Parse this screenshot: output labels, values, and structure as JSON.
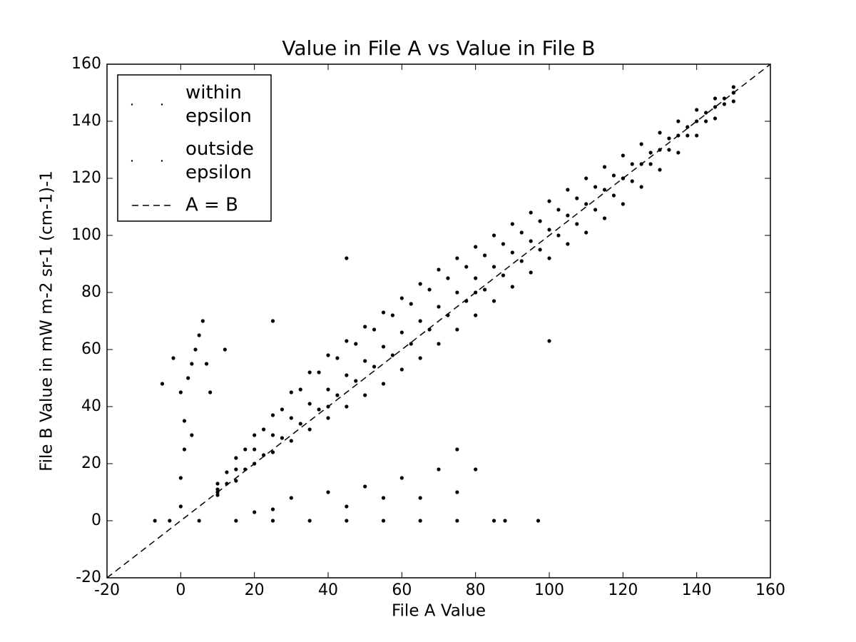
{
  "chart_data": {
    "type": "scatter",
    "title": "Value in File A vs Value in File B",
    "x_label": "File A Value",
    "y_label": "File B Value in mW m-2 sr-1 (cm-1)-1",
    "xlim": [
      -20,
      160
    ],
    "ylim": [
      -20,
      160
    ],
    "xticks": [
      -20,
      0,
      20,
      40,
      60,
      80,
      100,
      120,
      140,
      160
    ],
    "yticks": [
      -20,
      0,
      20,
      40,
      60,
      80,
      100,
      120,
      140,
      160
    ],
    "legend_location": "upper left",
    "series": [
      {
        "name": "within epsilon",
        "type": "scatter",
        "color": "#000000",
        "x": [
          10,
          40,
          80,
          120,
          150
        ],
        "y": [
          10,
          40,
          80,
          120,
          150
        ]
      },
      {
        "name": "outside epsilon",
        "type": "scatter",
        "color": "#000000",
        "x": [
          10,
          10,
          10,
          15,
          15,
          15,
          20,
          20,
          20,
          25,
          25,
          25,
          30,
          30,
          30,
          35,
          35,
          35,
          40,
          40,
          40,
          45,
          45,
          45,
          50,
          50,
          50,
          55,
          55,
          55,
          60,
          60,
          60,
          65,
          65,
          65,
          70,
          70,
          70,
          75,
          75,
          75,
          80,
          80,
          80,
          85,
          85,
          85,
          90,
          90,
          90,
          95,
          95,
          95,
          100,
          100,
          100,
          105,
          105,
          105,
          110,
          110,
          110,
          115,
          115,
          115,
          120,
          120,
          120,
          125,
          125,
          125,
          130,
          130,
          130,
          135,
          135,
          135,
          140,
          140,
          140,
          145,
          145,
          145,
          150,
          150,
          150,
          12.5,
          12.5,
          17.5,
          17.5,
          22.5,
          22.5,
          27.5,
          27.5,
          32.5,
          32.5,
          37.5,
          37.5,
          42.5,
          42.5,
          47.5,
          47.5,
          52.5,
          52.5,
          57.5,
          57.5,
          62.5,
          62.5,
          67.5,
          67.5,
          72.5,
          72.5,
          77.5,
          77.5,
          82.5,
          82.5,
          87.5,
          87.5,
          92.5,
          92.5,
          97.5,
          97.5,
          102.5,
          102.5,
          107.5,
          107.5,
          112.5,
          112.5,
          117.5,
          117.5,
          122.5,
          122.5,
          127.5,
          127.5,
          132.5,
          132.5,
          137.5,
          137.5,
          142.5,
          142.5,
          147.5,
          147.5,
          -7,
          -3,
          5,
          15,
          25,
          35,
          45,
          55,
          65,
          75,
          85,
          88,
          97,
          0,
          0,
          1,
          1,
          0,
          2,
          3,
          4,
          5,
          6,
          7,
          8,
          3,
          20,
          25,
          30,
          40,
          50,
          60,
          70,
          75,
          80,
          45,
          55,
          65,
          75,
          -2,
          -5,
          12,
          25,
          45,
          100
        ],
        "y": [
          11,
          13,
          9,
          18,
          22,
          14,
          25,
          30,
          20,
          30,
          37,
          24,
          36,
          45,
          28,
          41,
          52,
          32,
          46,
          58,
          36,
          51,
          63,
          40,
          56,
          68,
          44,
          61,
          73,
          48,
          66,
          78,
          53,
          70,
          83,
          57,
          75,
          88,
          62,
          80,
          92,
          67,
          85,
          96,
          72,
          89,
          100,
          77,
          94,
          104,
          82,
          98,
          108,
          87,
          102,
          112,
          92,
          107,
          116,
          97,
          111,
          120,
          101,
          116,
          124,
          106,
          120,
          128,
          111,
          125,
          132,
          117,
          130,
          136,
          123,
          135,
          140,
          129,
          140,
          144,
          135,
          145,
          148,
          141,
          150,
          152,
          147,
          17,
          13,
          25,
          18,
          32,
          23,
          39,
          29,
          46,
          34,
          52,
          39,
          57,
          44,
          62,
          49,
          67,
          54,
          72,
          58,
          76,
          62,
          81,
          67,
          85,
          72,
          89,
          77,
          93,
          81,
          97,
          86,
          101,
          91,
          105,
          95,
          109,
          100,
          113,
          104,
          117,
          109,
          121,
          114,
          125,
          119,
          129,
          125,
          134,
          130,
          138,
          135,
          143,
          140,
          148,
          146,
          0,
          0,
          0,
          0,
          0,
          0,
          0,
          0,
          0,
          0,
          0,
          0,
          0,
          5,
          15,
          25,
          35,
          45,
          50,
          55,
          60,
          65,
          70,
          55,
          45,
          30,
          3,
          4,
          8,
          10,
          12,
          15,
          18,
          25,
          18,
          5,
          8,
          8,
          10,
          57,
          48,
          60,
          70,
          92,
          63
        ]
      },
      {
        "name": "A = B",
        "type": "line",
        "color": "#000000",
        "line_style": "dashed",
        "x": [
          -20,
          160
        ],
        "y": [
          -20,
          160
        ]
      }
    ]
  }
}
